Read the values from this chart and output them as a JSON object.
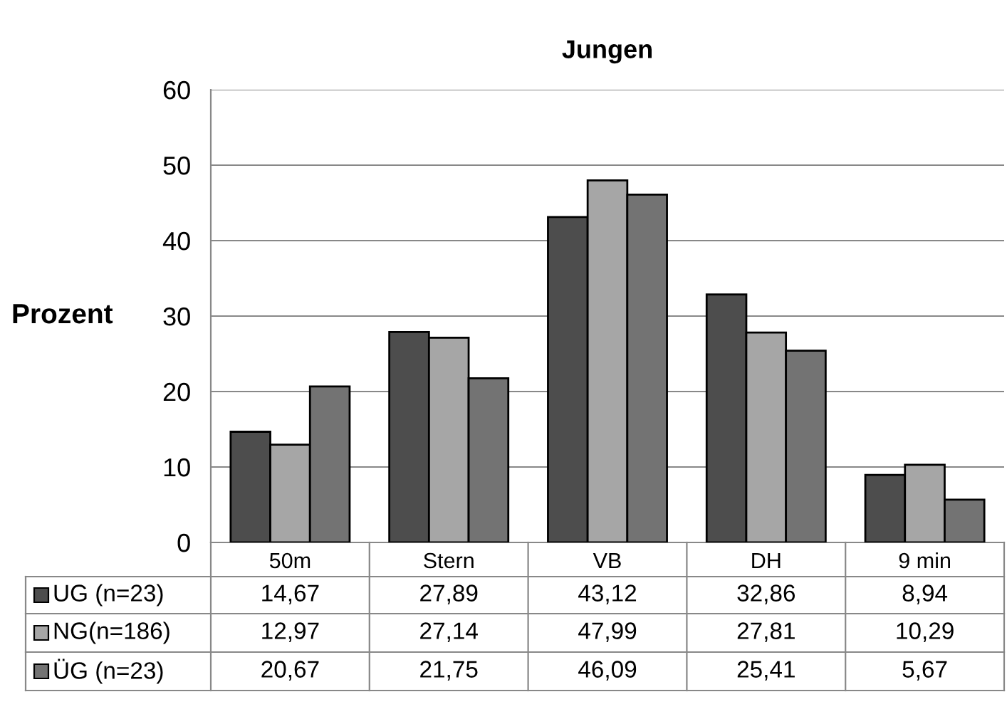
{
  "chart_data": {
    "type": "bar",
    "title": "Jungen",
    "ylabel": "Prozent",
    "categories": [
      "50m",
      "Stern",
      "VB",
      "DH",
      "9 min"
    ],
    "series": [
      {
        "name": "UG (n=23)",
        "color": "#4d4d4d",
        "values": [
          14.67,
          27.89,
          43.12,
          32.86,
          8.94
        ],
        "value_labels": [
          "14,67",
          "27,89",
          "43,12",
          "32,86",
          "8,94"
        ]
      },
      {
        "name": "NG(n=186)",
        "color": "#a6a6a6",
        "values": [
          12.97,
          27.14,
          47.99,
          27.81,
          10.29
        ],
        "value_labels": [
          "12,97",
          "27,14",
          "47,99",
          "27,81",
          "10,29"
        ]
      },
      {
        "name": "ÜG (n=23)",
        "color": "#737373",
        "values": [
          20.67,
          21.75,
          46.09,
          25.41,
          5.67
        ],
        "value_labels": [
          "20,67",
          "21,75",
          "46,09",
          "25,41",
          "5,67"
        ]
      }
    ],
    "ylim": [
      0,
      60
    ],
    "yticks": [
      0,
      10,
      20,
      30,
      40,
      50,
      60
    ],
    "grid": "y",
    "legend": "bottom left"
  }
}
